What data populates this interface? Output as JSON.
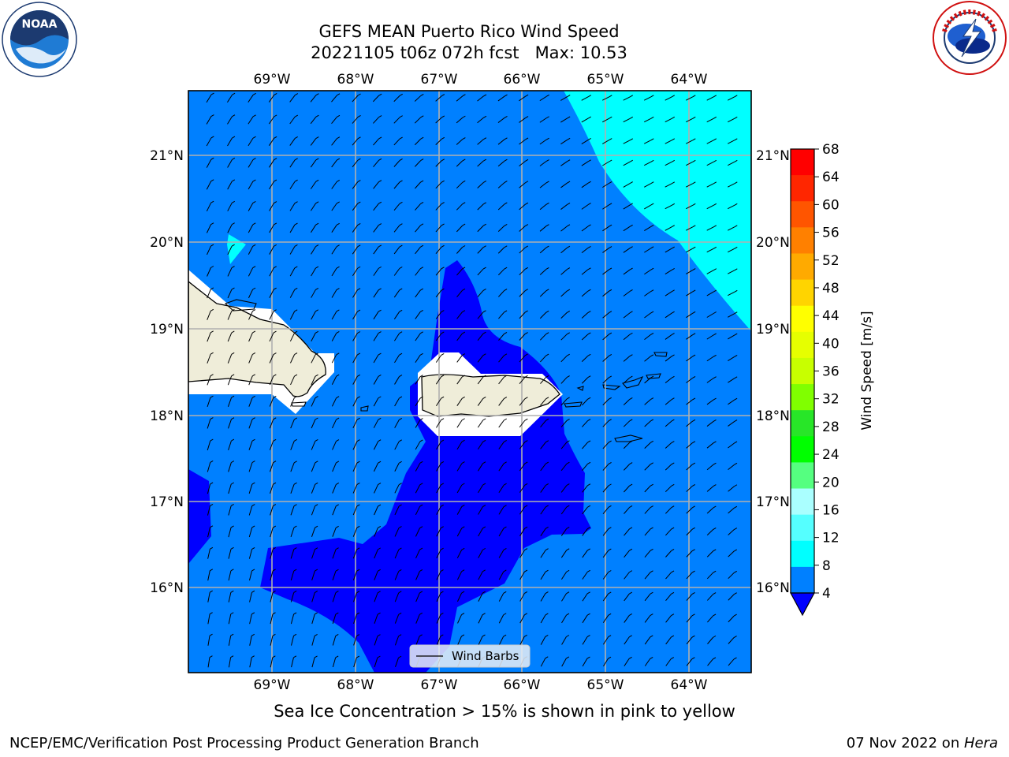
{
  "header": {
    "title_line1": "GEFS MEAN Puerto Rico Wind Speed",
    "title_line2": "20221105 t06z 072h fcst   Max: 10.53"
  },
  "logos": {
    "left": "noaa-logo",
    "left_text": "NOAA",
    "left_ring_text": "NATIONAL OCEANIC AND ATMOSPHERIC ADMINISTRATION · U.S. DEPARTMENT OF COMMERCE",
    "right": "national-weather-service-logo",
    "right_ring_text": "NATIONAL WEATHER SERVICE"
  },
  "map": {
    "region": "Puerto Rico",
    "lon_labels": [
      "69°W",
      "68°W",
      "67°W",
      "66°W",
      "65°W",
      "64°W"
    ],
    "lat_labels": [
      "21°N",
      "20°N",
      "19°N",
      "18°N",
      "17°N",
      "16°N"
    ],
    "legend_label": "Wind Barbs",
    "colors": {
      "ocean_base": "#0080ff",
      "low_wind": "#0000ff",
      "high_wind": "#00ffff",
      "land": "#efedd9",
      "mask": "#ffffff",
      "grid": "#b0b0b0"
    }
  },
  "colorbar": {
    "label": "Wind Speed [m/s]",
    "ticks": [
      "68",
      "64",
      "60",
      "56",
      "52",
      "48",
      "44",
      "40",
      "36",
      "32",
      "28",
      "24",
      "20",
      "16",
      "12",
      "8",
      "4"
    ],
    "colors_top_to_bottom": [
      "#ff0000",
      "#ff2600",
      "#ff5500",
      "#ff8000",
      "#ffaa00",
      "#ffd400",
      "#ffff00",
      "#e6ff00",
      "#c8ff00",
      "#80ff00",
      "#28e628",
      "#00ff00",
      "#55ff80",
      "#aaffff",
      "#55ffff",
      "#00ffff",
      "#0080ff"
    ],
    "extend_color": "#0000ff"
  },
  "notes": {
    "sea_ice": "Sea Ice Concentration > 15% is shown in pink to yellow"
  },
  "footer": {
    "left": "NCEP/EMC/Verification Post Processing Product Generation Branch",
    "date": "07 Nov 2022 on ",
    "machine": "Hera"
  }
}
